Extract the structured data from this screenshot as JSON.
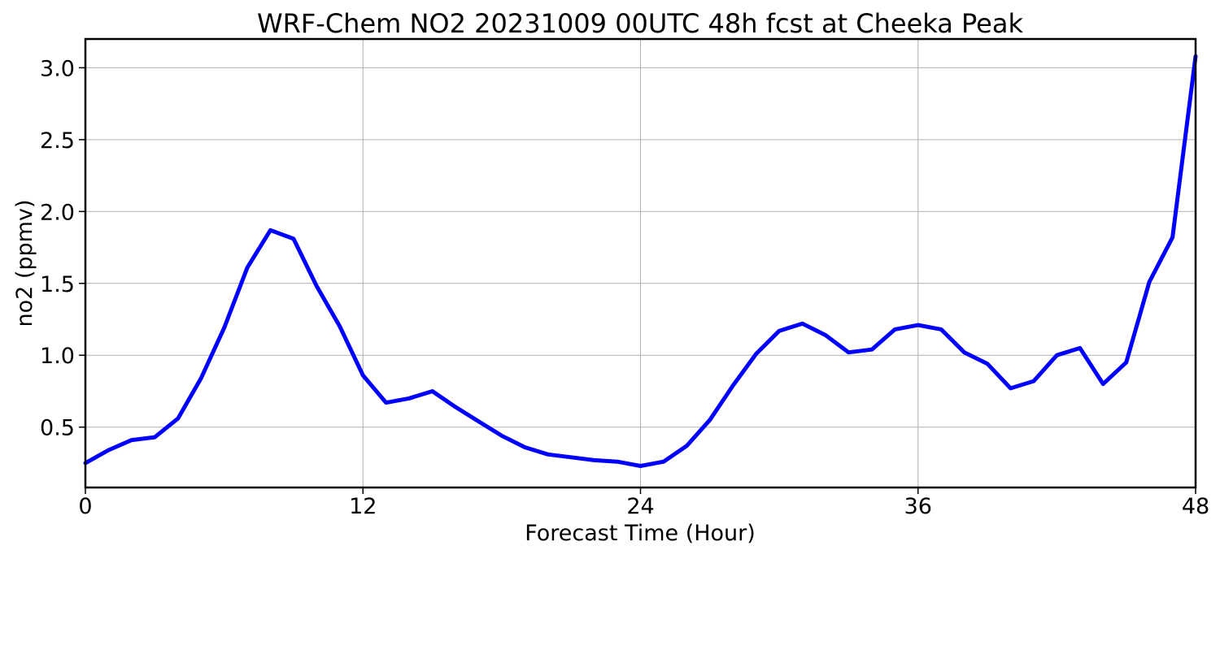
{
  "chart_data": {
    "type": "line",
    "title": "WRF-Chem NO2  20231009 00UTC 48h fcst at Cheeka Peak",
    "xlabel": "Forecast Time (Hour)",
    "ylabel": "no2  (ppmv)",
    "xlim": [
      0,
      48
    ],
    "ylim": [
      0.08,
      3.2
    ],
    "xticks": [
      0,
      12,
      24,
      36,
      48
    ],
    "xtick_labels": [
      "0",
      "12",
      "24",
      "36",
      "48"
    ],
    "yticks": [
      0.5,
      1.0,
      1.5,
      2.0,
      2.5,
      3.0
    ],
    "ytick_labels": [
      "0.5",
      "1.0",
      "1.5",
      "2.0",
      "2.5",
      "3.0"
    ],
    "grid": true,
    "line_color": "#0000ff",
    "x": [
      0,
      1,
      2,
      3,
      4,
      5,
      6,
      7,
      8,
      9,
      10,
      11,
      12,
      13,
      14,
      15,
      16,
      17,
      18,
      19,
      20,
      21,
      22,
      23,
      24,
      25,
      26,
      27,
      28,
      29,
      30,
      31,
      32,
      33,
      34,
      35,
      36,
      37,
      38,
      39,
      40,
      41,
      42,
      43,
      44,
      45,
      46,
      47,
      48
    ],
    "series": [
      {
        "values": [
          0.25,
          0.34,
          0.41,
          0.43,
          0.56,
          0.84,
          1.19,
          1.61,
          1.87,
          1.81,
          1.48,
          1.2,
          0.86,
          0.67,
          0.7,
          0.75,
          0.64,
          0.54,
          0.44,
          0.36,
          0.31,
          0.29,
          0.27,
          0.26,
          0.23,
          0.26,
          0.37,
          0.55,
          0.79,
          1.01,
          1.17,
          1.22,
          1.14,
          1.02,
          1.04,
          1.18,
          1.21,
          1.18,
          1.02,
          0.94,
          0.77,
          0.82,
          1.0,
          1.05,
          0.8,
          0.95,
          1.51,
          1.82,
          3.08
        ]
      }
    ]
  }
}
